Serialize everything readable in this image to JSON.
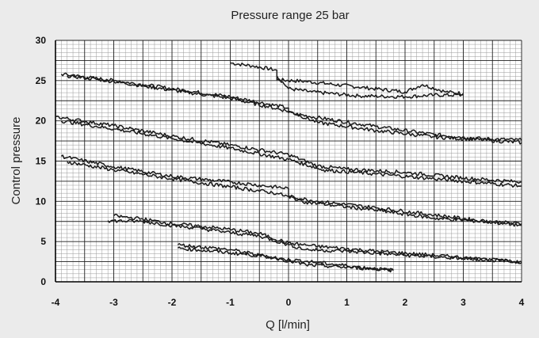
{
  "chart_data": {
    "type": "line",
    "title": "Pressure range 25 bar",
    "xlabel": "Q [l/min]",
    "ylabel": "Control pressure",
    "xlim": [
      -4,
      4
    ],
    "ylim": [
      0,
      30
    ],
    "x_ticks": [
      "-4",
      "-3",
      "-2",
      "-1",
      "0",
      "1",
      "2",
      "3",
      "4"
    ],
    "y_ticks": [
      "0",
      "5",
      "10",
      "15",
      "20",
      "25",
      "30"
    ],
    "grid": true,
    "legend": "none",
    "line_color": "#1a1a1a",
    "series": [
      {
        "points": [
          [
            -1.0,
            27.2
          ],
          [
            -0.6,
            26.8
          ],
          [
            -0.2,
            26.3
          ],
          [
            -0.2,
            25.1
          ],
          [
            0.3,
            24.9
          ],
          [
            1.2,
            24.2
          ],
          [
            2.0,
            23.6
          ],
          [
            2.3,
            24.5
          ],
          [
            2.7,
            23.6
          ],
          [
            3.0,
            23.4
          ]
        ]
      },
      {
        "points": [
          [
            -0.2,
            25.6
          ],
          [
            0.0,
            24.0
          ],
          [
            0.4,
            23.6
          ],
          [
            1.2,
            23.1
          ],
          [
            2.0,
            23.0
          ],
          [
            2.5,
            23.2
          ],
          [
            3.0,
            23.2
          ]
        ]
      },
      {
        "points": [
          [
            -3.9,
            25.8
          ],
          [
            -3.0,
            25.0
          ],
          [
            -2.0,
            24.0
          ],
          [
            -1.0,
            23.0
          ],
          [
            0.0,
            21.6
          ],
          [
            0.0,
            21.0
          ],
          [
            0.5,
            20.4
          ],
          [
            1.5,
            19.3
          ],
          [
            2.5,
            18.3
          ],
          [
            3.3,
            17.8
          ],
          [
            4.0,
            17.6
          ]
        ]
      },
      {
        "points": [
          [
            -3.8,
            25.6
          ],
          [
            -3.0,
            24.9
          ],
          [
            -2.0,
            23.8
          ],
          [
            -1.0,
            22.8
          ],
          [
            0.0,
            21.2
          ],
          [
            0.5,
            19.8
          ],
          [
            1.5,
            18.8
          ],
          [
            2.5,
            18.0
          ],
          [
            4.0,
            17.3
          ]
        ]
      },
      {
        "points": [
          [
            -4.0,
            20.5
          ],
          [
            -3.0,
            19.4
          ],
          [
            -2.0,
            18.1
          ],
          [
            -1.0,
            17.0
          ],
          [
            0.0,
            15.8
          ],
          [
            0.5,
            14.4
          ],
          [
            1.0,
            14.0
          ],
          [
            2.0,
            13.6
          ],
          [
            3.0,
            12.9
          ],
          [
            4.0,
            12.4
          ]
        ]
      },
      {
        "points": [
          [
            -3.9,
            20.0
          ],
          [
            -3.0,
            19.0
          ],
          [
            -2.0,
            17.8
          ],
          [
            -1.0,
            16.6
          ],
          [
            0.0,
            15.2
          ],
          [
            0.6,
            13.9
          ],
          [
            1.5,
            13.4
          ],
          [
            2.5,
            12.8
          ],
          [
            4.0,
            11.9
          ]
        ]
      },
      {
        "points": [
          [
            -3.9,
            15.6
          ],
          [
            -3.0,
            14.3
          ],
          [
            -2.0,
            13.1
          ],
          [
            -1.0,
            12.4
          ],
          [
            0.0,
            11.6
          ],
          [
            0.0,
            10.6
          ],
          [
            0.5,
            10.0
          ],
          [
            1.5,
            9.2
          ],
          [
            2.5,
            8.3
          ],
          [
            3.3,
            7.6
          ],
          [
            4.0,
            7.2
          ]
        ]
      },
      {
        "points": [
          [
            -3.8,
            14.9
          ],
          [
            -3.0,
            13.9
          ],
          [
            -2.0,
            12.8
          ],
          [
            -1.0,
            11.8
          ],
          [
            -0.2,
            11.0
          ],
          [
            0.3,
            9.9
          ],
          [
            1.5,
            8.9
          ],
          [
            2.5,
            7.9
          ],
          [
            3.5,
            7.4
          ],
          [
            4.0,
            7.0
          ]
        ]
      },
      {
        "points": [
          [
            -3.0,
            8.2
          ],
          [
            -2.5,
            7.8
          ],
          [
            -2.0,
            7.2
          ],
          [
            -1.5,
            6.9
          ],
          [
            -1.0,
            6.5
          ],
          [
            -0.5,
            6.0
          ],
          [
            0.0,
            4.8
          ],
          [
            0.5,
            4.4
          ],
          [
            1.5,
            3.8
          ],
          [
            2.5,
            3.3
          ],
          [
            3.5,
            2.7
          ],
          [
            4.0,
            2.4
          ]
        ]
      },
      {
        "points": [
          [
            -3.1,
            7.6
          ],
          [
            -2.5,
            7.5
          ],
          [
            -2.0,
            7.0
          ],
          [
            -1.5,
            6.6
          ],
          [
            -1.0,
            6.1
          ],
          [
            -0.5,
            5.7
          ],
          [
            0.0,
            4.6
          ],
          [
            0.3,
            4.0
          ],
          [
            1.0,
            3.8
          ],
          [
            2.0,
            3.3
          ],
          [
            3.0,
            2.9
          ],
          [
            4.0,
            2.5
          ]
        ]
      },
      {
        "points": [
          [
            -1.9,
            4.6
          ],
          [
            -1.0,
            4.0
          ],
          [
            -0.5,
            3.3
          ],
          [
            -0.2,
            2.9
          ],
          [
            0.5,
            2.4
          ],
          [
            1.0,
            2.0
          ],
          [
            1.8,
            1.4
          ]
        ]
      },
      {
        "points": [
          [
            -1.9,
            4.2
          ],
          [
            -1.0,
            3.6
          ],
          [
            -0.3,
            3.1
          ],
          [
            0.3,
            2.1
          ],
          [
            1.0,
            1.8
          ],
          [
            1.8,
            1.5
          ]
        ]
      }
    ]
  }
}
